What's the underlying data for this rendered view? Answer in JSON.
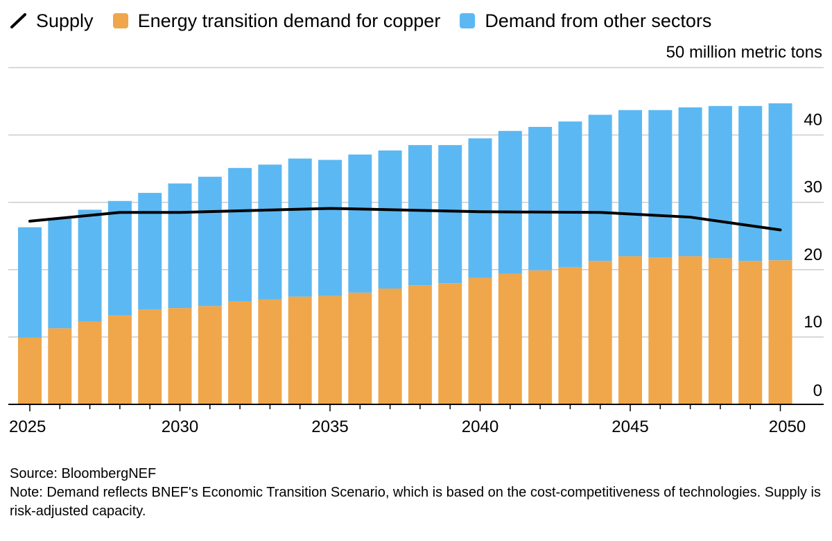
{
  "legend": {
    "supply_label": "Supply",
    "energy_label": "Energy transition demand for copper",
    "other_label": "Demand from other sectors"
  },
  "unit_label": "50 million metric tons",
  "footer": {
    "source": "Source: BloombergNEF",
    "note": "Note: Demand reflects BNEF's Economic Transition Scenario, which is based on the cost-competitiveness of technologies. Supply is risk-adjusted capacity."
  },
  "colors": {
    "energy": "#f0a64a",
    "other": "#5cb8f2",
    "supply": "#000000",
    "grid": "#cccccc",
    "axis": "#000000"
  },
  "chart_data": {
    "type": "bar",
    "stacked": true,
    "title": "",
    "xlabel": "",
    "ylabel": "",
    "unit": "million metric tons",
    "categories": [
      2025,
      2026,
      2027,
      2028,
      2029,
      2030,
      2031,
      2032,
      2033,
      2034,
      2035,
      2036,
      2037,
      2038,
      2039,
      2040,
      2041,
      2042,
      2043,
      2044,
      2045,
      2046,
      2047,
      2048,
      2049,
      2050
    ],
    "series": [
      {
        "name": "Energy transition demand for copper",
        "color": "#f0a64a",
        "values": [
          9.9,
          11.3,
          12.3,
          13.2,
          14.1,
          14.3,
          14.6,
          15.3,
          15.6,
          16.0,
          16.1,
          16.6,
          17.2,
          17.7,
          18.0,
          18.8,
          19.4,
          19.9,
          20.4,
          21.3,
          22.0,
          21.8,
          22.0,
          21.7,
          21.3,
          21.4
        ]
      },
      {
        "name": "Demand from other sectors",
        "color": "#5cb8f2",
        "values": [
          16.4,
          16.4,
          16.6,
          17.0,
          17.3,
          18.5,
          19.2,
          19.8,
          20.0,
          20.5,
          20.2,
          20.5,
          20.5,
          20.8,
          20.5,
          20.7,
          21.2,
          21.3,
          21.6,
          21.7,
          21.7,
          21.9,
          22.1,
          22.6,
          23.0,
          23.3
        ]
      }
    ],
    "line": {
      "name": "Supply",
      "color": "#000000",
      "x": [
        2025,
        2028,
        2030,
        2035,
        2040,
        2044,
        2047,
        2050
      ],
      "values": [
        27.2,
        28.5,
        28.5,
        29.1,
        28.6,
        28.5,
        27.8,
        25.9
      ]
    },
    "xticks": [
      "2025",
      "2030",
      "2035",
      "2040",
      "2045",
      "2050"
    ],
    "xtick_years": [
      2025,
      2030,
      2035,
      2040,
      2045,
      2050
    ],
    "yticks": [
      "0",
      "10",
      "20",
      "30",
      "40"
    ],
    "ytick_values": [
      0,
      10,
      20,
      30,
      40
    ],
    "top_gridline": 50,
    "ylim": [
      0,
      50
    ],
    "grid": true,
    "y_axis_position": "right",
    "legend_position": "top-left"
  }
}
